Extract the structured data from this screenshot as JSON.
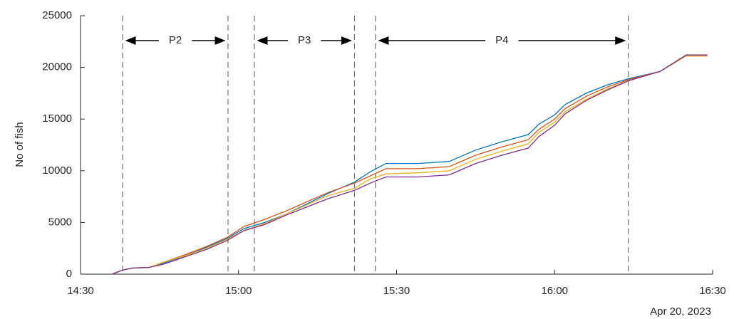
{
  "chart_data": {
    "type": "line",
    "ylabel": "No of fish",
    "date_label": "Apr 20, 2023",
    "x": [
      "14:36",
      "14:38",
      "14:40",
      "14:43",
      "14:46",
      "14:50",
      "14:54",
      "14:58",
      "15:01",
      "15:05",
      "15:09",
      "15:13",
      "15:17",
      "15:22",
      "15:25",
      "15:28",
      "15:34",
      "15:40",
      "15:45",
      "15:50",
      "15:55",
      "15:57",
      "16:00",
      "16:02",
      "16:06",
      "16:10",
      "16:14",
      "16:20",
      "16:25",
      "16:29"
    ],
    "series": [
      {
        "color": "#0072BD",
        "values": [
          0,
          400,
          600,
          650,
          1100,
          1800,
          2600,
          3500,
          4400,
          5000,
          5800,
          6800,
          7800,
          8900,
          9900,
          10700,
          10700,
          10900,
          12000,
          12800,
          13500,
          14500,
          15400,
          16400,
          17500,
          18300,
          18900,
          19600,
          21200,
          21200
        ]
      },
      {
        "color": "#D95319",
        "values": [
          0,
          400,
          600,
          650,
          1200,
          1900,
          2700,
          3600,
          4600,
          5300,
          6100,
          7000,
          7900,
          8800,
          9500,
          10200,
          10200,
          10400,
          11500,
          12300,
          13000,
          14000,
          15000,
          16000,
          17200,
          18100,
          18800,
          19600,
          21100,
          21100
        ]
      },
      {
        "color": "#EDB120",
        "values": [
          0,
          400,
          600,
          650,
          1200,
          1800,
          2500,
          3400,
          4200,
          4900,
          5800,
          6700,
          7600,
          8300,
          9200,
          9700,
          9800,
          10000,
          11100,
          11900,
          12600,
          13700,
          14700,
          15700,
          16900,
          17900,
          18700,
          19600,
          21100,
          21100
        ]
      },
      {
        "color": "#7E2F8E",
        "values": [
          0,
          400,
          600,
          650,
          1000,
          1700,
          2400,
          3300,
          4200,
          4800,
          5700,
          6500,
          7300,
          8100,
          8800,
          9400,
          9400,
          9600,
          10700,
          11500,
          12200,
          13300,
          14400,
          15500,
          16800,
          17800,
          18700,
          19600,
          21200,
          21200
        ]
      }
    ],
    "xlim": [
      "14:30",
      "16:30"
    ],
    "xticks": [
      "14:30",
      "15:00",
      "15:30",
      "16:00",
      "16:30"
    ],
    "ylim": [
      0,
      25000
    ],
    "yticks": [
      0,
      5000,
      10000,
      15000,
      20000,
      25000
    ],
    "regions": [
      {
        "label": "P2",
        "start": "14:38",
        "end": "14:58"
      },
      {
        "label": "P3",
        "start": "15:03",
        "end": "15:22"
      },
      {
        "label": "P4",
        "start": "15:26",
        "end": "16:14"
      }
    ]
  }
}
